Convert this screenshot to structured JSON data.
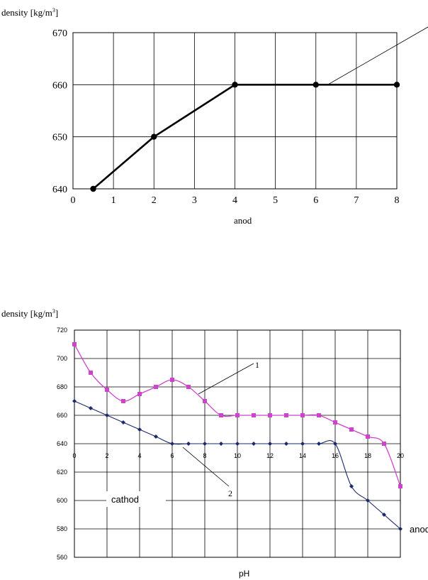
{
  "chart_data": [
    {
      "type": "line",
      "ylabel": "density [kg/m³]",
      "ylabel_main": "density [kg/m",
      "ylabel_sup": "3",
      "ylabel_end": "]",
      "xlabel": "anod",
      "xlim": [
        0,
        8
      ],
      "ylim": [
        640,
        670
      ],
      "x_ticks": [
        0,
        1,
        2,
        3,
        4,
        5,
        6,
        7,
        8
      ],
      "y_ticks": [
        640,
        650,
        660,
        670
      ],
      "grid": true,
      "series": [
        {
          "x": [
            0.5,
            2,
            4,
            6,
            8
          ],
          "y": [
            640,
            650,
            660,
            660,
            660
          ],
          "color": "#000000"
        }
      ],
      "annotations": [
        {
          "text": "",
          "from": [
            6.2,
            660
          ]
        }
      ]
    },
    {
      "type": "line",
      "ylabel": "density [kg/m³]",
      "ylabel_main": "density [kg/m",
      "ylabel_sup": "3",
      "ylabel_end": "]",
      "xlabel": "pH",
      "xlim": [
        0,
        20
      ],
      "ylim": [
        560,
        720
      ],
      "x_ticks": [
        0,
        2,
        4,
        6,
        8,
        10,
        12,
        14,
        16,
        18,
        20
      ],
      "y_ticks": [
        560,
        580,
        600,
        620,
        640,
        660,
        680,
        700,
        720
      ],
      "grid": true,
      "series": [
        {
          "label": "1",
          "color": "#cc44cc",
          "marker": "square",
          "x": [
            0,
            1,
            2,
            3,
            4,
            5,
            6,
            7,
            8,
            9,
            10,
            11,
            12,
            13,
            14,
            15,
            16,
            17,
            18,
            19,
            20
          ],
          "y": [
            710,
            690,
            678,
            670,
            675,
            680,
            685,
            680,
            670,
            660,
            660,
            660,
            660,
            660,
            660,
            660,
            655,
            650,
            645,
            640,
            610
          ]
        },
        {
          "label": "2",
          "color": "#1a2a6c",
          "marker": "diamond",
          "x": [
            0,
            1,
            2,
            3,
            4,
            5,
            6,
            7,
            8,
            9,
            10,
            11,
            12,
            13,
            14,
            15,
            16,
            17,
            18,
            19,
            20
          ],
          "y": [
            670,
            665,
            660,
            655,
            650,
            645,
            640,
            640,
            640,
            640,
            640,
            640,
            640,
            640,
            640,
            640,
            640,
            610,
            600,
            590,
            580
          ]
        }
      ],
      "annotations": [
        {
          "text": "cathod"
        },
        {
          "text": "anod"
        }
      ]
    }
  ]
}
